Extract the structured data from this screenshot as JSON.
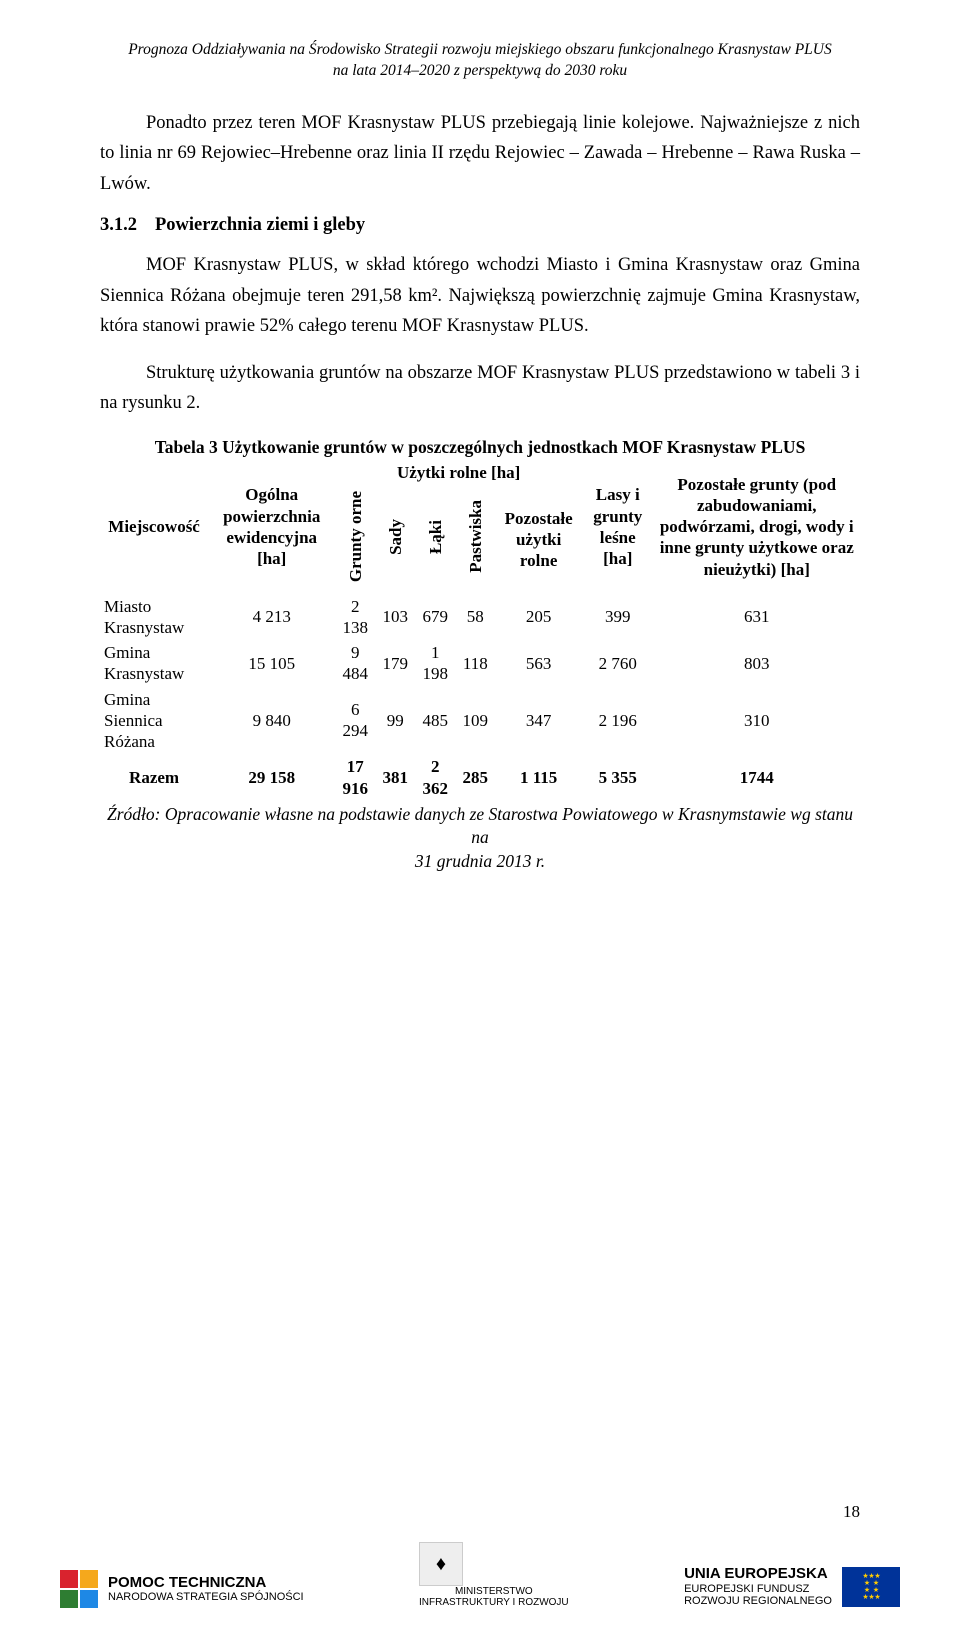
{
  "header": {
    "line1": "Prognoza Oddziaływania na Środowisko Strategii rozwoju miejskiego obszaru funkcjonalnego Krasnystaw PLUS",
    "line2": "na lata 2014–2020 z perspektywą do 2030 roku"
  },
  "para1": "Ponadto przez teren MOF Krasnystaw PLUS przebiegają linie kolejowe. Najważniejsze z nich to linia nr 69 Rejowiec–Hrebenne oraz linia II rzędu Rejowiec – Zawada – Hrebenne – Rawa Ruska – Lwów.",
  "section": {
    "num": "3.1.2",
    "title": "Powierzchnia ziemi i gleby"
  },
  "para2": "MOF Krasnystaw PLUS, w skład którego wchodzi Miasto i Gmina Krasnystaw oraz Gmina Siennica Różana obejmuje teren 291,58 km². Największą powierzchnię zajmuje Gmina Krasnystaw, która stanowi prawie 52% całego terenu MOF Krasnystaw PLUS.",
  "para3": "Strukturę użytkowania gruntów na obszarze MOF Krasnystaw PLUS przedstawiono w tabeli 3 i na rysunku 2.",
  "table": {
    "caption": "Tabela 3 Użytkowanie gruntów w poszczególnych jednostkach MOF Krasnystaw PLUS",
    "col_loc": "Miejscowość",
    "col_total": "Ogólna powierzchnia ewidencyjna [ha]",
    "group_uzytki": "Użytki rolne [ha]",
    "col_grunty": "Grunty orne",
    "col_sady": "Sady",
    "col_laki": "Łąki",
    "col_pastwiska": "Pastwiska",
    "col_pozostale_uz": "Pozostałe użytki rolne",
    "col_lasy": "Lasy i grunty leśne [ha]",
    "col_pozostale": "Pozostałe grunty (pod zabudowaniami, podwórzami, drogi, wody i inne grunty użytkowe oraz nieużytki) [ha]",
    "rows": [
      {
        "loc": "Miasto Krasnystaw",
        "total": "4 213",
        "grunty": "2 138",
        "sady": "103",
        "laki": "679",
        "pastwiska": "58",
        "poz_uz": "205",
        "lasy": "399",
        "poz": "631"
      },
      {
        "loc": "Gmina Krasnystaw",
        "total": "15 105",
        "grunty": "9 484",
        "sady": "179",
        "laki": "1 198",
        "pastwiska": "118",
        "poz_uz": "563",
        "lasy": "2 760",
        "poz": "803"
      },
      {
        "loc": "Gmina Siennica Różana",
        "total": "9 840",
        "grunty": "6 294",
        "sady": "99",
        "laki": "485",
        "pastwiska": "109",
        "poz_uz": "347",
        "lasy": "2 196",
        "poz": "310"
      }
    ],
    "sum": {
      "loc": "Razem",
      "total": "29 158",
      "grunty": "17 916",
      "sady": "381",
      "laki": "2 362",
      "pastwiska": "285",
      "poz_uz": "1 115",
      "lasy": "5 355",
      "poz": "1744"
    },
    "source1": "Źródło: Opracowanie własne na podstawie danych ze Starostwa Powiatowego w Krasnymstawie wg stanu na",
    "source2": "31 grudnia 2013 r."
  },
  "page_number": "18",
  "footer": {
    "left_big": "POMOC TECHNICZNA",
    "left_small": "NARODOWA STRATEGIA SPÓJNOŚCI",
    "center1": "MINISTERSTWO",
    "center2": "INFRASTRUKTURY I ROZWOJU",
    "right1": "UNIA EUROPEJSKA",
    "right2": "EUROPEJSKI FUNDUSZ",
    "right3": "ROZWOJU REGIONALNEGO",
    "square_colors": [
      "#d9232e",
      "#f5a81c",
      "#2e7d32",
      "#1e88e5"
    ]
  }
}
